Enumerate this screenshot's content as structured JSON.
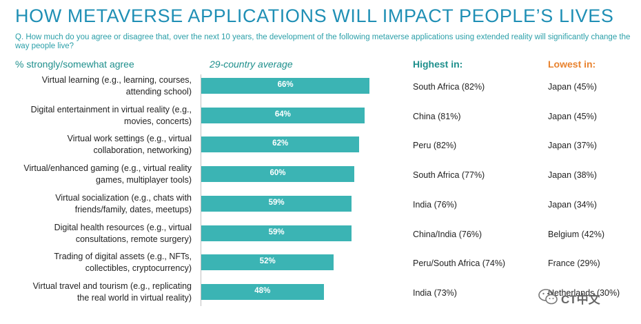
{
  "title": "HOW METAVERSE APPLICATIONS WILL IMPACT PEOPLE’S LIVES",
  "question": "Q. How much do you agree or disagree that, over the next 10 years, the development of the following metaverse applications using extended reality will significantly change the way people live?",
  "headers": {
    "left": "% strongly/somewhat agree",
    "average": "29-country average",
    "highest": "Highest in:",
    "lowest": "Lowest in:"
  },
  "colors": {
    "bar": "#3bb4b4",
    "title": "#1f8fb5",
    "highest_header": "#1e8f8c",
    "lowest_header": "#e8822e"
  },
  "watermark": {
    "text": "CT中文",
    "icon": "wechat-icon"
  },
  "chart_data": {
    "type": "bar",
    "orientation": "horizontal",
    "xlim": [
      0,
      100
    ],
    "categories": [
      [
        "Virtual learning (e.g., learning, courses,",
        "attending school)"
      ],
      [
        "Digital entertainment in virtual reality (e.g.,",
        "movies, concerts)"
      ],
      [
        "Virtual work settings (e.g., virtual",
        "collaboration, networking)"
      ],
      [
        "Virtual/enhanced gaming (e.g., virtual reality",
        "games, multiplayer tools)"
      ],
      [
        "Virtual socialization (e.g., chats with",
        "friends/family, dates, meetups)"
      ],
      [
        "Digital health resources (e.g., virtual",
        "consultations, remote surgery)"
      ],
      [
        "Trading of digital assets (e.g., NFTs,",
        "collectibles, cryptocurrency)"
      ],
      [
        "Virtual travel and tourism (e.g., replicating",
        "the real world in virtual reality)"
      ]
    ],
    "values": [
      66,
      64,
      62,
      60,
      59,
      59,
      52,
      48
    ],
    "value_labels": [
      "66%",
      "64%",
      "62%",
      "60%",
      "59%",
      "59%",
      "52%",
      "48%"
    ],
    "highest_in": [
      "South Africa (82%)",
      "China (81%)",
      "Peru (82%)",
      "South Africa (77%)",
      "India (76%)",
      "China/India (76%)",
      "Peru/South Africa (74%)",
      "India (73%)"
    ],
    "lowest_in": [
      "Japan (45%)",
      "Japan (45%)",
      "Japan (37%)",
      "Japan (38%)",
      "Japan (34%)",
      "Belgium (42%)",
      "France (29%)",
      "Netherlands (30%)"
    ]
  }
}
